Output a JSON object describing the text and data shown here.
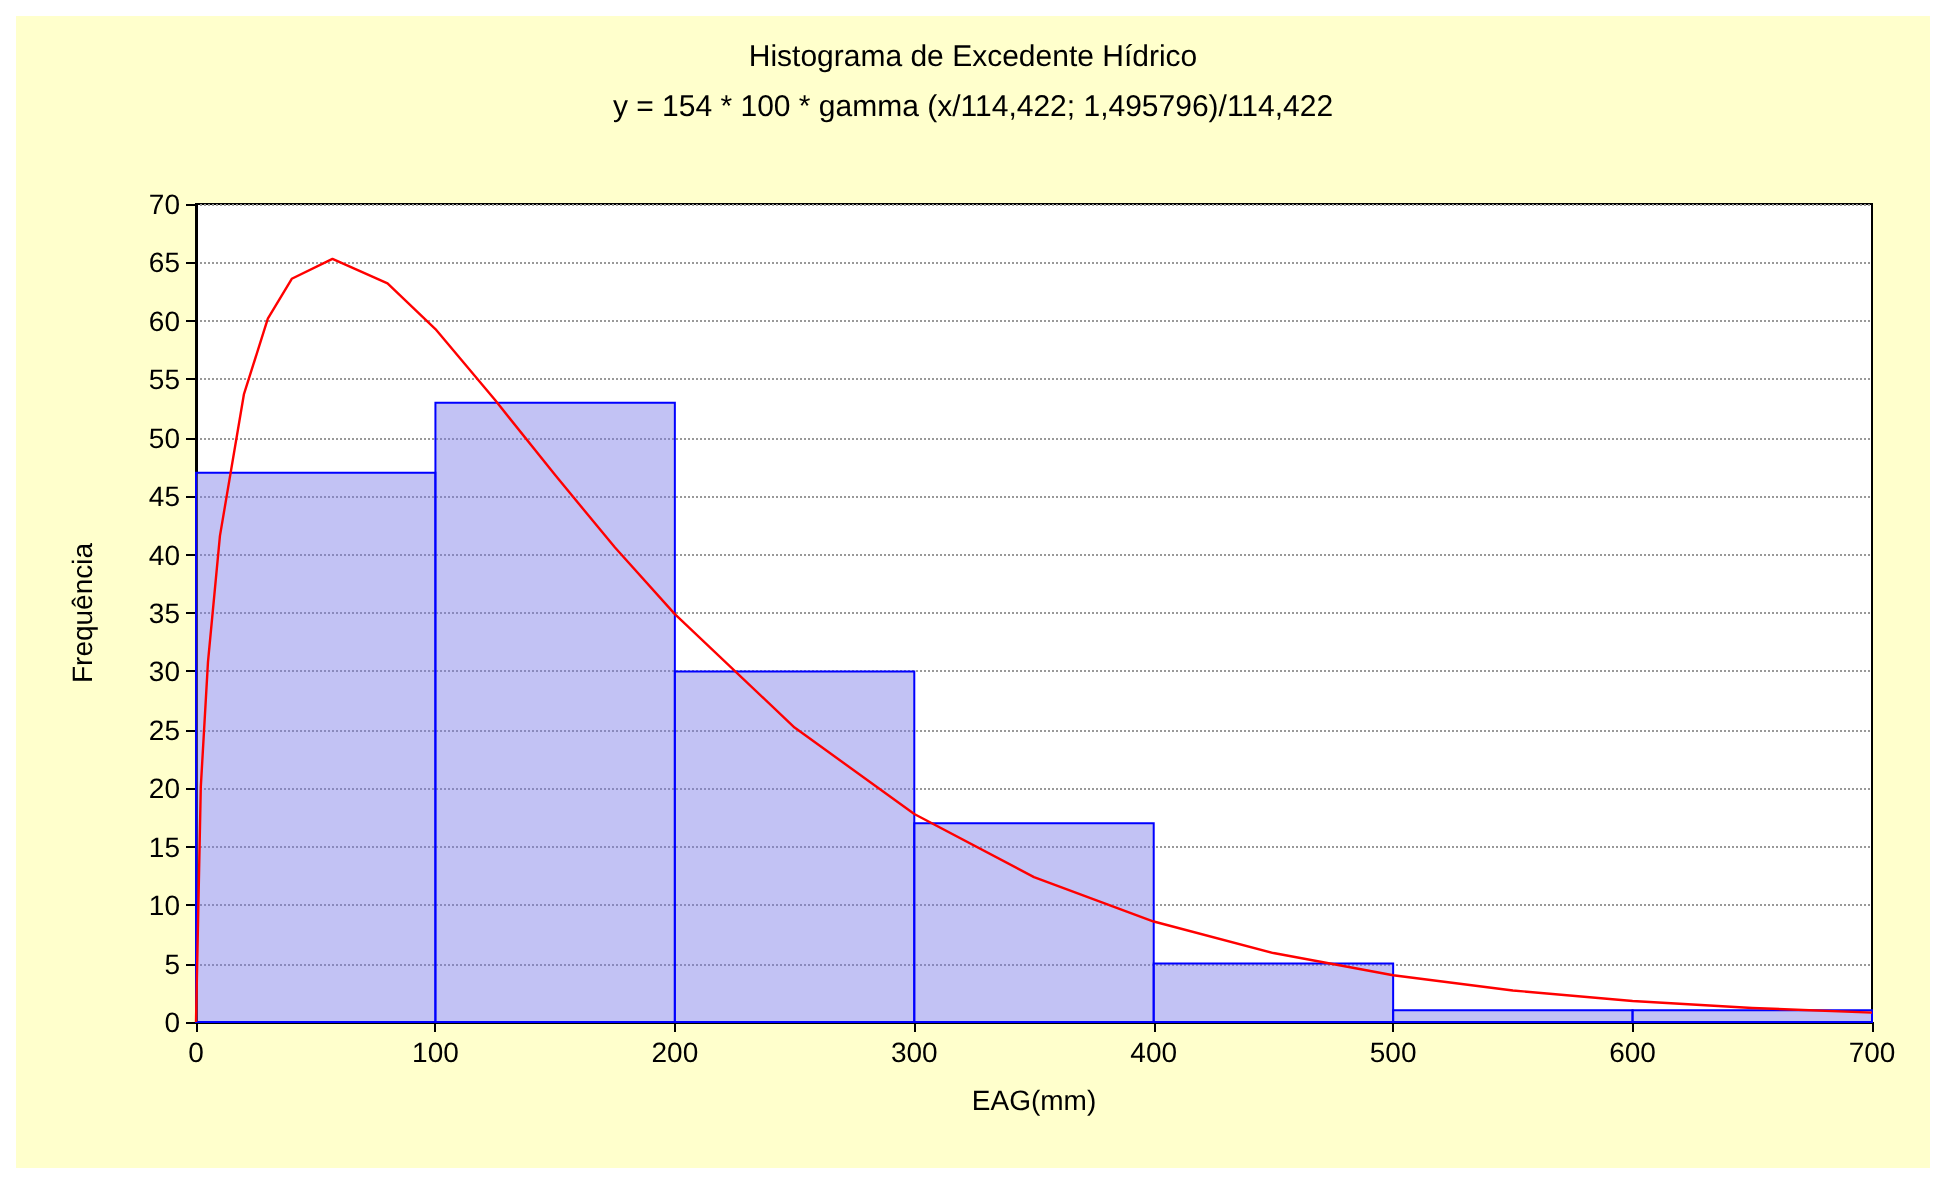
{
  "chart_data": {
    "type": "histogram",
    "title": "Histograma de Excedente Hídrico",
    "subtitle": "y = 154 * 100 * gamma (x/114,422; 1,495796)/114,422",
    "xlabel": "EAG(mm)",
    "ylabel": "Frequência",
    "bins": [
      0,
      100,
      200,
      300,
      400,
      500,
      600,
      700
    ],
    "values": [
      47,
      53,
      30,
      17,
      5,
      1,
      1
    ],
    "color": "#0000ff",
    "series": [
      {
        "type": "line",
        "color": "#ff0000",
        "x": [
          0,
          2,
          5,
          10,
          20,
          30,
          40,
          57,
          80,
          100,
          125,
          150,
          175,
          200,
          250,
          300,
          350,
          400,
          450,
          500,
          550,
          600,
          650,
          700
        ],
        "values": [
          0,
          20.1,
          30.8,
          41.6,
          53.7,
          60.2,
          63.6,
          65.3,
          63.2,
          59.3,
          53.2,
          46.8,
          40.6,
          34.9,
          25.2,
          17.8,
          12.4,
          8.6,
          5.9,
          4.0,
          2.7,
          1.8,
          1.2,
          0.8
        ]
      }
    ],
    "xlim": [
      0,
      700
    ],
    "xticks": [
      0,
      100,
      200,
      300,
      400,
      500,
      600,
      700
    ],
    "ylim": [
      0,
      70
    ],
    "yticks": [
      0,
      5,
      10,
      15,
      20,
      25,
      30,
      35,
      40,
      45,
      50,
      55,
      60,
      65,
      70
    ],
    "grid": "y",
    "marker": "none"
  }
}
